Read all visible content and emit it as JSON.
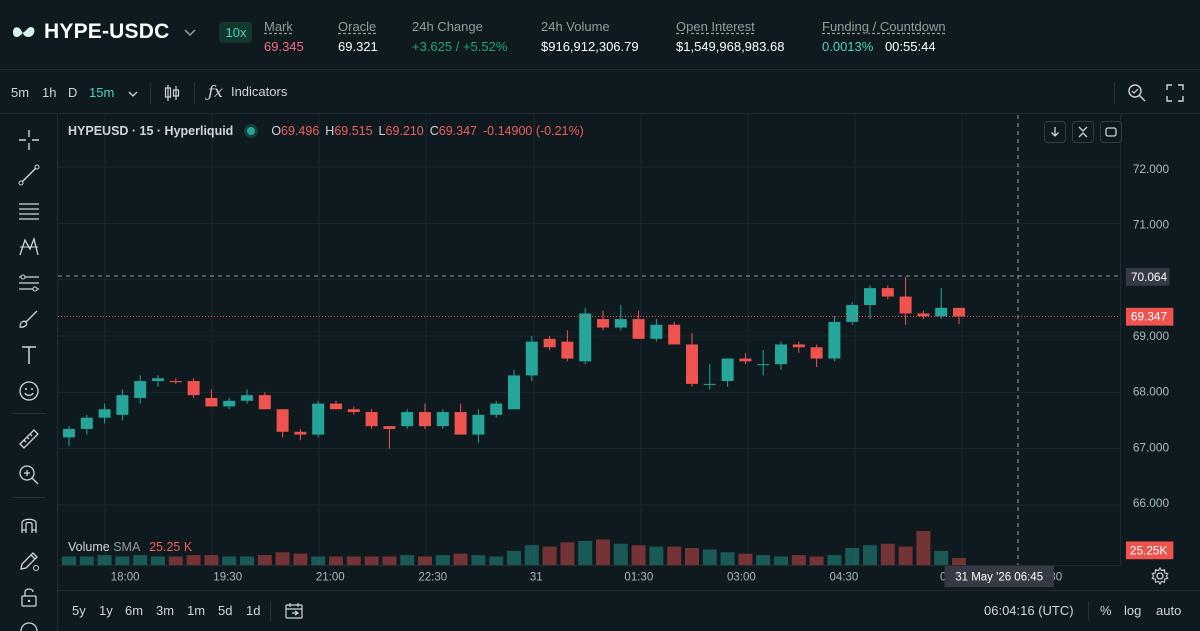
{
  "header": {
    "pair": "HYPE-USDC",
    "leverage": "10x",
    "stats": [
      {
        "label": "Mark",
        "value": "69.345",
        "underline": true,
        "color": "red"
      },
      {
        "label": "Oracle",
        "value": "69.321",
        "underline": true,
        "color": ""
      },
      {
        "label": "24h Change",
        "value": "+3.625 / +5.52%",
        "underline": false,
        "color": "green"
      },
      {
        "label": "24h Volume",
        "value": "$916,912,306.79",
        "underline": false,
        "color": ""
      },
      {
        "label": "Open Interest",
        "value": "$1,549,968,983.68",
        "underline": true,
        "color": ""
      },
      {
        "label": "Funding / Countdown",
        "value": "0.0013%",
        "value2": "00:55:44",
        "underline": true,
        "color": "teal"
      }
    ]
  },
  "toolbar": {
    "intervals": [
      "5m",
      "1h",
      "D",
      "15m"
    ],
    "active_interval": "15m",
    "indicators_label": "Indicators"
  },
  "legend": {
    "symbol": "HYPEUSD · 15 · Hyperliquid",
    "o_label": "O",
    "o": "69.496",
    "h_label": "H",
    "h": "69.515",
    "l_label": "L",
    "l": "69.210",
    "c_label": "C",
    "c": "69.347",
    "change": "-0.14900 (-0.21%)"
  },
  "volume_legend": {
    "title": "Volume",
    "sma": "SMA",
    "value": "25.25 K"
  },
  "price_axis": {
    "ticks": [
      "72.000",
      "71.000",
      "70.064",
      "69.347",
      "69.000",
      "68.000",
      "67.000",
      "66.000"
    ],
    "crosshair_price": "70.064",
    "last_price": "69.347",
    "volume_tag": "25.25K"
  },
  "time_axis": {
    "ticks": [
      "18:00",
      "19:30",
      "21:00",
      "22:30",
      "31",
      "01:30",
      "03:00",
      "04:30",
      "06"
    ],
    "crosshair_label": "31 May '26   06:45",
    "tail": "30"
  },
  "bottom_bar": {
    "ranges": [
      "5y",
      "1y",
      "6m",
      "3m",
      "1m",
      "5d",
      "1d"
    ],
    "clock": "06:04:16 (UTC)",
    "pct": "%",
    "log": "log",
    "auto": "auto"
  },
  "colors": {
    "up": "#26a69a",
    "down": "#ef5350",
    "accent": "#50d2c1"
  },
  "chart_data": {
    "type": "candlestick",
    "interval": "15m",
    "ylim": [
      65.6,
      72.6
    ],
    "candles": [
      {
        "o": 67.2,
        "h": 67.4,
        "l": 67.05,
        "c": 67.35
      },
      {
        "o": 67.35,
        "h": 67.6,
        "l": 67.25,
        "c": 67.55
      },
      {
        "o": 67.55,
        "h": 67.8,
        "l": 67.45,
        "c": 67.7
      },
      {
        "o": 67.6,
        "h": 68.05,
        "l": 67.5,
        "c": 67.95
      },
      {
        "o": 67.9,
        "h": 68.3,
        "l": 67.8,
        "c": 68.2
      },
      {
        "o": 68.2,
        "h": 68.3,
        "l": 68.1,
        "c": 68.25
      },
      {
        "o": 68.2,
        "h": 68.25,
        "l": 68.15,
        "c": 68.18
      },
      {
        "o": 68.2,
        "h": 68.25,
        "l": 67.9,
        "c": 67.95
      },
      {
        "o": 67.9,
        "h": 68.05,
        "l": 67.75,
        "c": 67.75
      },
      {
        "o": 67.75,
        "h": 67.9,
        "l": 67.7,
        "c": 67.85
      },
      {
        "o": 67.85,
        "h": 68.05,
        "l": 67.8,
        "c": 67.95
      },
      {
        "o": 67.95,
        "h": 68.0,
        "l": 67.7,
        "c": 67.7
      },
      {
        "o": 67.7,
        "h": 67.7,
        "l": 67.2,
        "c": 67.3
      },
      {
        "o": 67.3,
        "h": 67.35,
        "l": 67.15,
        "c": 67.25
      },
      {
        "o": 67.25,
        "h": 67.85,
        "l": 67.2,
        "c": 67.8
      },
      {
        "o": 67.8,
        "h": 67.85,
        "l": 67.7,
        "c": 67.7
      },
      {
        "o": 67.7,
        "h": 67.75,
        "l": 67.6,
        "c": 67.65
      },
      {
        "o": 67.65,
        "h": 67.7,
        "l": 67.35,
        "c": 67.4
      },
      {
        "o": 67.4,
        "h": 67.4,
        "l": 67.0,
        "c": 67.35
      },
      {
        "o": 67.4,
        "h": 67.7,
        "l": 67.35,
        "c": 67.65
      },
      {
        "o": 67.65,
        "h": 67.8,
        "l": 67.35,
        "c": 67.4
      },
      {
        "o": 67.4,
        "h": 67.7,
        "l": 67.35,
        "c": 67.65
      },
      {
        "o": 67.65,
        "h": 67.8,
        "l": 67.25,
        "c": 67.25
      },
      {
        "o": 67.25,
        "h": 67.7,
        "l": 67.1,
        "c": 67.6
      },
      {
        "o": 67.6,
        "h": 67.85,
        "l": 67.55,
        "c": 67.8
      },
      {
        "o": 67.7,
        "h": 68.4,
        "l": 67.7,
        "c": 68.3
      },
      {
        "o": 68.3,
        "h": 69.0,
        "l": 68.2,
        "c": 68.9
      },
      {
        "o": 68.95,
        "h": 69.0,
        "l": 68.75,
        "c": 68.8
      },
      {
        "o": 68.9,
        "h": 69.1,
        "l": 68.55,
        "c": 68.6
      },
      {
        "o": 68.55,
        "h": 69.5,
        "l": 68.5,
        "c": 69.4
      },
      {
        "o": 69.3,
        "h": 69.45,
        "l": 69.1,
        "c": 69.15
      },
      {
        "o": 69.15,
        "h": 69.55,
        "l": 69.1,
        "c": 69.3
      },
      {
        "o": 69.3,
        "h": 69.45,
        "l": 68.95,
        "c": 68.95
      },
      {
        "o": 68.95,
        "h": 69.3,
        "l": 68.9,
        "c": 69.2
      },
      {
        "o": 69.2,
        "h": 69.25,
        "l": 68.85,
        "c": 68.85
      },
      {
        "o": 68.85,
        "h": 69.05,
        "l": 68.1,
        "c": 68.15
      },
      {
        "o": 68.15,
        "h": 68.5,
        "l": 68.05,
        "c": 68.15
      },
      {
        "o": 68.2,
        "h": 68.6,
        "l": 68.1,
        "c": 68.6
      },
      {
        "o": 68.6,
        "h": 68.7,
        "l": 68.5,
        "c": 68.55
      },
      {
        "o": 68.5,
        "h": 68.75,
        "l": 68.3,
        "c": 68.5
      },
      {
        "o": 68.5,
        "h": 68.9,
        "l": 68.4,
        "c": 68.85
      },
      {
        "o": 68.85,
        "h": 68.9,
        "l": 68.7,
        "c": 68.8
      },
      {
        "o": 68.8,
        "h": 68.85,
        "l": 68.45,
        "c": 68.6
      },
      {
        "o": 68.6,
        "h": 69.35,
        "l": 68.55,
        "c": 69.25
      },
      {
        "o": 69.25,
        "h": 69.6,
        "l": 69.2,
        "c": 69.55
      },
      {
        "o": 69.55,
        "h": 69.9,
        "l": 69.3,
        "c": 69.85
      },
      {
        "o": 69.85,
        "h": 69.9,
        "l": 69.65,
        "c": 69.7
      },
      {
        "o": 69.7,
        "h": 70.05,
        "l": 69.2,
        "c": 69.4
      },
      {
        "o": 69.4,
        "h": 69.45,
        "l": 69.3,
        "c": 69.35
      },
      {
        "o": 69.35,
        "h": 69.85,
        "l": 69.3,
        "c": 69.5
      },
      {
        "o": 69.5,
        "h": 69.5,
        "l": 69.21,
        "c": 69.347
      }
    ],
    "volume": [
      6,
      6,
      7,
      6,
      7,
      6,
      6,
      7,
      7,
      6,
      6,
      7,
      9,
      8,
      6,
      6,
      6,
      6,
      6,
      7,
      6,
      7,
      8,
      7,
      6,
      10,
      14,
      13,
      16,
      17,
      18,
      15,
      14,
      13,
      13,
      12,
      11,
      9,
      8,
      7,
      6,
      7,
      6,
      7,
      12,
      14,
      15,
      13,
      24,
      10,
      5
    ]
  }
}
